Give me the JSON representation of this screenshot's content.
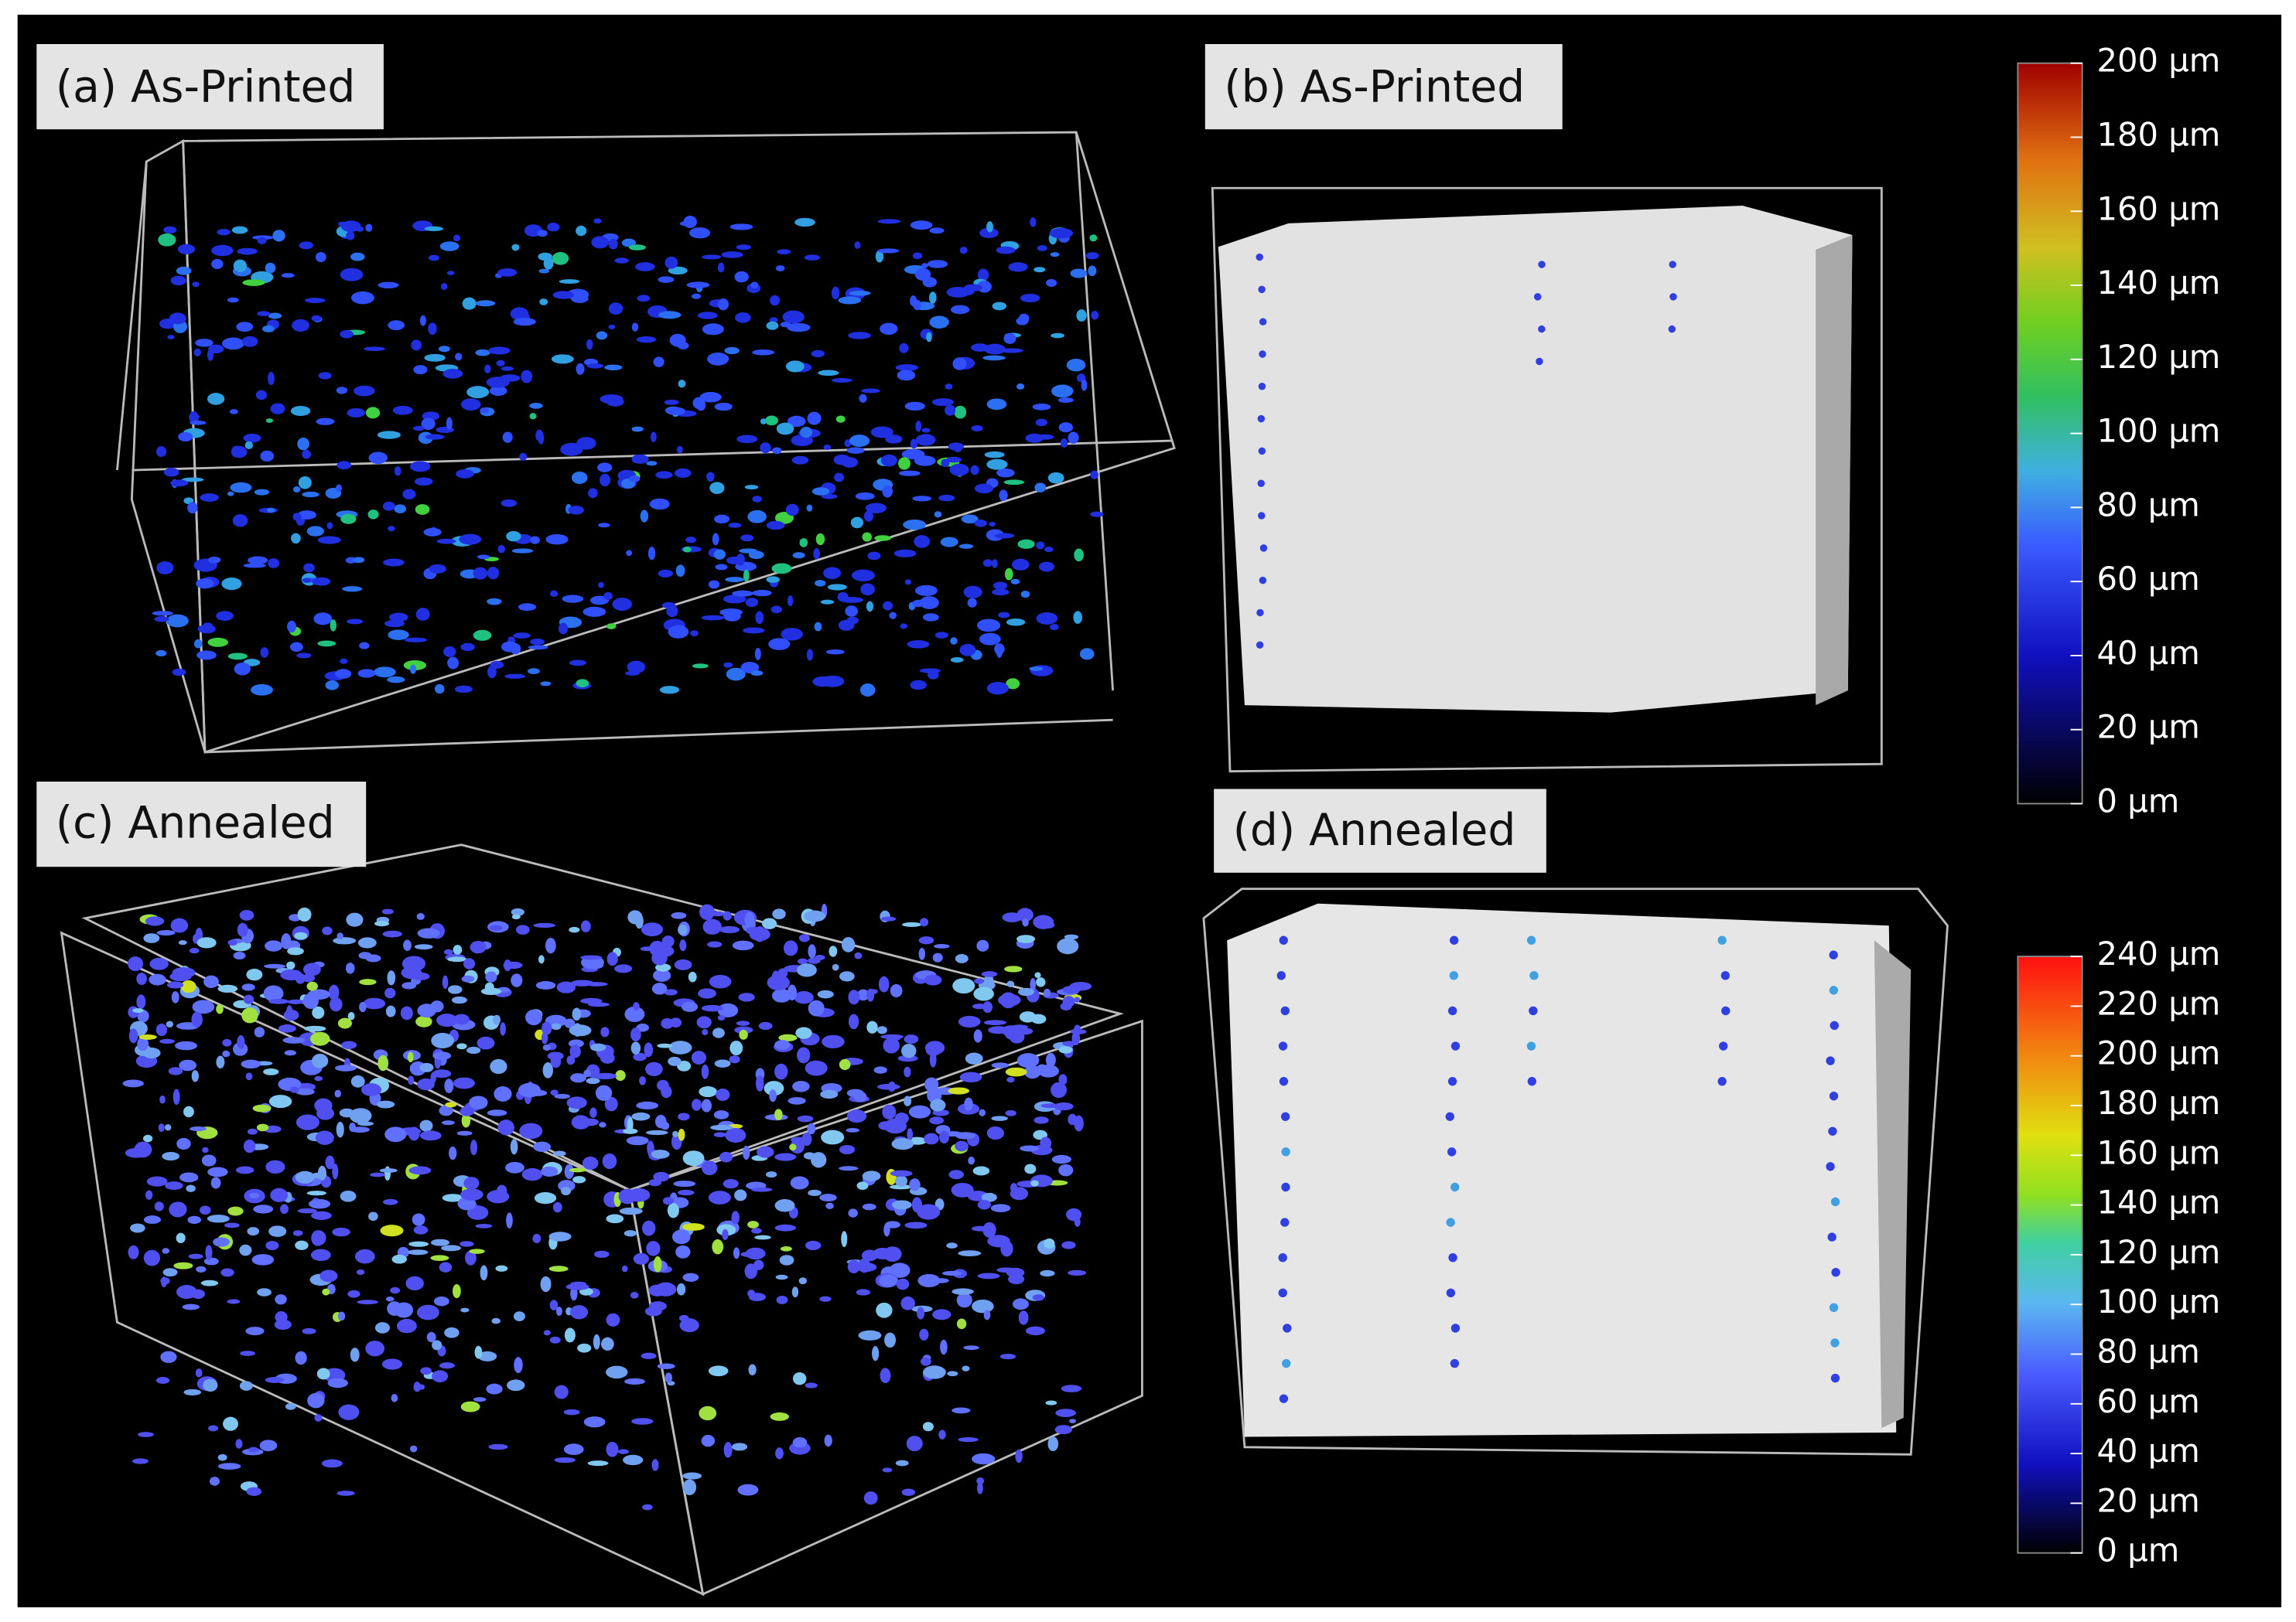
{
  "panels": [
    {
      "label": "(a) As-Printed"
    },
    {
      "label": "(b) As-Printed"
    },
    {
      "label": "(c) Annealed"
    },
    {
      "label": "(d) Annealed"
    }
  ],
  "colorbars": [
    {
      "ticks": [
        "0 µm",
        "20 µm",
        "40 µm",
        "60 µm",
        "80 µm",
        "100 µm",
        "120 µm",
        "140 µm",
        "160 µm",
        "180 µm",
        "200 µm"
      ]
    },
    {
      "ticks": [
        "0 µm",
        "20 µm",
        "40 µm",
        "60 µm",
        "80 µm",
        "100 µm",
        "120 µm",
        "140 µm",
        "160 µm",
        "180 µm",
        "200 µm",
        "220 µm",
        "240 µm"
      ]
    }
  ]
}
